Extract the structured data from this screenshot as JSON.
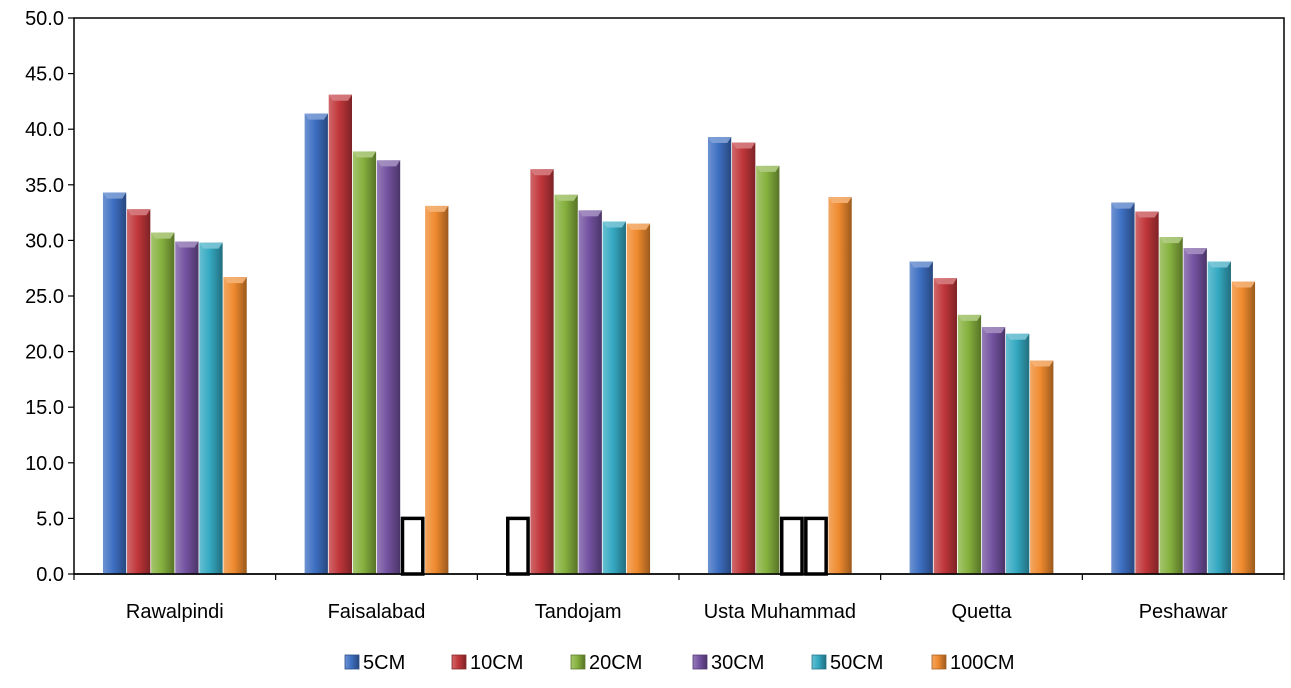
{
  "chart_data": {
    "type": "bar",
    "categories": [
      "Rawalpindi",
      "Faisalabad",
      "Tandojam",
      "Usta Muhammad",
      "Quetta",
      "Peshawar"
    ],
    "series": [
      {
        "name": "5CM",
        "color": "#3d6fc2",
        "values": [
          34.3,
          41.4,
          null,
          39.3,
          28.1,
          33.4
        ]
      },
      {
        "name": "10CM",
        "color": "#c0363a",
        "values": [
          32.8,
          43.1,
          36.4,
          38.8,
          26.6,
          32.6
        ]
      },
      {
        "name": "20CM",
        "color": "#86b13e",
        "values": [
          30.7,
          38.0,
          34.1,
          36.7,
          23.3,
          30.3
        ]
      },
      {
        "name": "30CM",
        "color": "#7352a0",
        "values": [
          29.9,
          37.2,
          32.7,
          null,
          22.2,
          29.3
        ]
      },
      {
        "name": "50CM",
        "color": "#34a9c2",
        "values": [
          29.8,
          null,
          31.7,
          null,
          21.6,
          28.1
        ]
      },
      {
        "name": "100CM",
        "color": "#ef8a2e",
        "values": [
          26.7,
          33.1,
          31.5,
          33.9,
          19.2,
          26.3
        ]
      }
    ],
    "y_ticks": [
      "0.0",
      "5.0",
      "10.0",
      "15.0",
      "20.0",
      "25.0",
      "30.0",
      "35.0",
      "40.0",
      "45.0",
      "50.0"
    ],
    "ylim": [
      0,
      50
    ],
    "legend_position": "bottom",
    "grid": false
  }
}
